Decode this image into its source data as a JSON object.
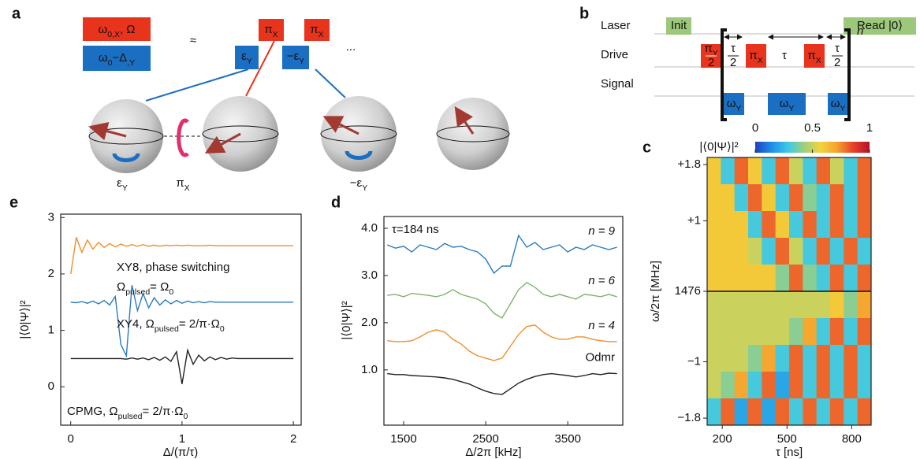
{
  "panel_a": {
    "label": "a",
    "boxes": [
      [
        {
          "t": "ω"
        },
        {
          "sub": "0,X"
        },
        {
          "t": ", Ω"
        }
      ],
      [
        {
          "t": "ω"
        },
        {
          "sub": "0"
        },
        {
          "t": "−Δ"
        },
        {
          "sub": ",Y"
        }
      ]
    ],
    "approx": "≈",
    "pulses": [
      [
        {
          "t": "π"
        },
        {
          "sub": "X"
        }
      ],
      [
        {
          "t": "π"
        },
        {
          "sub": "X"
        }
      ]
    ],
    "phases": [
      [
        {
          "t": "ε"
        },
        {
          "sub": "Y"
        }
      ],
      [
        {
          "t": "−ε"
        },
        {
          "sub": "Y"
        }
      ]
    ],
    "ellipsis": "...",
    "sphere_labels": [
      [
        {
          "t": "ε"
        },
        {
          "sub": "Y"
        }
      ],
      [
        {
          "t": "π"
        },
        {
          "sub": "X"
        }
      ],
      [
        {
          "t": "−ε"
        },
        {
          "sub": "Y"
        }
      ]
    ]
  },
  "panel_b": {
    "label": "b",
    "rows": [
      "Laser",
      "Drive",
      "Signal"
    ],
    "init": "Init",
    "read": "Read |0⟩",
    "drive": [
      {
        "num": [
          {
            "t": "π"
          },
          {
            "sub": "Y"
          }
        ],
        "den": "2"
      },
      {
        "num": "τ",
        "den": "2"
      },
      [
        {
          "t": "π"
        },
        {
          "sub": "X"
        }
      ],
      "τ",
      [
        {
          "t": "π"
        },
        {
          "sub": "X"
        }
      ],
      {
        "num": "τ",
        "den": "2"
      }
    ],
    "signal": [
      [
        {
          "t": "ω"
        },
        {
          "sub": "Y"
        }
      ],
      [
        {
          "t": "ω"
        },
        {
          "sub": "Y"
        }
      ],
      [
        {
          "t": "ω"
        },
        {
          "sub": "Y"
        }
      ]
    ],
    "repeat": "n"
  },
  "chart_data": [
    {
      "type": "heatmap",
      "label": "c",
      "colorbar_title": "|⟨0|Ψ⟩|²",
      "clim": [
        0,
        1
      ],
      "cbar_ticks": [
        0,
        0.5,
        1
      ],
      "colormap": [
        "#1f3fbf",
        "#1e8fe8",
        "#3cc8e6",
        "#9fd07e",
        "#f4d33c",
        "#f5a22e",
        "#e8402a",
        "#b0122a"
      ],
      "xlabel": "τ [ns]",
      "ylabel": "ω/2π [MHz]",
      "xlim": [
        130,
        890
      ],
      "ylim": [
        -1.9,
        1.9
      ],
      "xticks": [
        200,
        500,
        800
      ],
      "yticks": [
        {
          "value": 1.8,
          "label": "+1.8"
        },
        {
          "value": 1,
          "label": "+1"
        },
        {
          "value": 0,
          "label": "1476"
        },
        {
          "value": -1,
          "label": "−1"
        },
        {
          "value": -1.8,
          "label": "−1.8"
        }
      ],
      "z": [
        [
          0.6,
          0.3,
          0.8,
          0.6,
          0.3,
          0.8,
          0.5,
          0.3,
          0.8,
          0.5,
          0.3,
          0.8
        ],
        [
          0.6,
          0.6,
          0.3,
          0.8,
          0.6,
          0.3,
          0.8,
          0.4,
          0.3,
          0.8,
          0.3,
          0.8
        ],
        [
          0.6,
          0.6,
          0.6,
          0.3,
          0.8,
          0.6,
          0.3,
          0.8,
          0.3,
          0.8,
          0.3,
          0.8
        ],
        [
          0.6,
          0.6,
          0.6,
          0.5,
          0.3,
          0.8,
          0.5,
          0.3,
          0.8,
          0.3,
          0.8,
          0.3
        ],
        [
          0.6,
          0.6,
          0.6,
          0.6,
          0.6,
          0.4,
          0.8,
          0.4,
          0.3,
          0.8,
          0.3,
          0.8
        ],
        [
          0.5,
          0.5,
          0.5,
          0.5,
          0.5,
          0.5,
          0.5,
          0.5,
          0.5,
          0.6,
          0.4,
          0.7
        ],
        [
          0.5,
          0.5,
          0.5,
          0.5,
          0.5,
          0.5,
          0.4,
          0.7,
          0.3,
          0.8,
          0.3,
          0.8
        ],
        [
          0.5,
          0.5,
          0.5,
          0.4,
          0.7,
          0.3,
          0.8,
          0.3,
          0.8,
          0.3,
          0.8,
          0.3
        ],
        [
          0.5,
          0.4,
          0.7,
          0.3,
          0.8,
          0.2,
          0.8,
          0.3,
          0.8,
          0.3,
          0.8,
          0.3
        ],
        [
          0.3,
          0.8,
          0.2,
          0.8,
          0.2,
          0.8,
          0.3,
          0.8,
          0.3,
          0.8,
          0.3,
          0.8
        ]
      ]
    },
    {
      "type": "line",
      "label": "d",
      "xlabel": "Δ/2π [kHz]",
      "ylabel": "|⟨0|Ψ⟩|²",
      "annotation": "τ=184 ns",
      "xlim": [
        1260,
        4170
      ],
      "ylim": [
        -0.17,
        4.25
      ],
      "xticks": [
        1500,
        2500,
        3500
      ],
      "yticks": [
        {
          "value": 1,
          "label": "1.0"
        },
        {
          "value": 2,
          "label": "2.0"
        },
        {
          "value": 3,
          "label": "3.0"
        },
        {
          "value": 4,
          "label": "4.0"
        }
      ],
      "x": [
        1300,
        1400,
        1500,
        1600,
        1700,
        1800,
        1900,
        2000,
        2100,
        2200,
        2300,
        2400,
        2500,
        2600,
        2700,
        2800,
        2900,
        3000,
        3100,
        3200,
        3300,
        3400,
        3500,
        3600,
        3700,
        3800,
        3900,
        4000,
        4100
      ],
      "series": [
        {
          "name": "n = 9",
          "color": "#2a7bc0",
          "label_color": "#1b6fc2",
          "values": [
            3.65,
            3.58,
            3.62,
            3.5,
            3.65,
            3.6,
            3.55,
            3.68,
            3.6,
            3.62,
            3.55,
            3.5,
            3.35,
            3.05,
            3.2,
            3.2,
            3.85,
            3.6,
            3.7,
            3.55,
            3.6,
            3.65,
            3.5,
            3.6,
            3.55,
            3.65,
            3.6,
            3.55,
            3.6
          ]
        },
        {
          "name": "n = 6",
          "color": "#7cb46b",
          "label_color": "#1b6fc2",
          "values": [
            2.58,
            2.6,
            2.55,
            2.62,
            2.6,
            2.58,
            2.55,
            2.6,
            2.7,
            2.6,
            2.55,
            2.5,
            2.4,
            2.2,
            2.1,
            2.4,
            2.7,
            2.85,
            2.75,
            2.6,
            2.55,
            2.6,
            2.55,
            2.5,
            2.6,
            2.58,
            2.55,
            2.6,
            2.55
          ]
        },
        {
          "name": "n = 4",
          "color": "#f28e2b",
          "label_color": "#1b6fc2",
          "values": [
            1.62,
            1.6,
            1.6,
            1.62,
            1.7,
            1.8,
            1.85,
            1.8,
            1.65,
            1.55,
            1.4,
            1.3,
            1.25,
            1.2,
            1.25,
            1.5,
            1.75,
            1.92,
            1.95,
            1.8,
            1.7,
            1.65,
            1.65,
            1.7,
            1.7,
            1.65,
            1.62,
            1.6,
            1.6
          ]
        },
        {
          "name": "Odmr",
          "color": "#222222",
          "label_color": "#111111",
          "values": [
            0.92,
            0.9,
            0.9,
            0.88,
            0.87,
            0.86,
            0.85,
            0.83,
            0.8,
            0.75,
            0.7,
            0.62,
            0.55,
            0.5,
            0.48,
            0.6,
            0.72,
            0.8,
            0.86,
            0.9,
            0.92,
            0.9,
            0.88,
            0.85,
            0.88,
            0.92,
            0.9,
            0.93,
            0.92
          ]
        }
      ]
    },
    {
      "type": "line",
      "label": "e",
      "xlabel": "Δ/(π/τ)",
      "ylabel": "|⟨0|Ψ⟩|²",
      "xlim": [
        -0.09,
        2.07
      ],
      "ylim": [
        -0.68,
        3.06
      ],
      "xticks": [
        0,
        1,
        2
      ],
      "yticks": [
        0,
        1,
        2,
        3
      ],
      "annotations": [
        [
          {
            "t": "XY8, phase switching"
          }
        ],
        [
          {
            "t": "Ω"
          },
          {
            "sub": "pulsed"
          },
          {
            "t": "= Ω"
          },
          {
            "sub": "0"
          }
        ],
        [
          {
            "t": "XY4, Ω"
          },
          {
            "sub": "pulsed"
          },
          {
            "t": "= 2/π·Ω"
          },
          {
            "sub": "0"
          }
        ],
        [
          {
            "t": "CPMG, Ω"
          },
          {
            "sub": "pulsed"
          },
          {
            "t": "= 2/π·Ω"
          },
          {
            "sub": "0"
          }
        ]
      ],
      "x": [
        0,
        0.05,
        0.1,
        0.15,
        0.2,
        0.25,
        0.3,
        0.35,
        0.4,
        0.45,
        0.5,
        0.55,
        0.6,
        0.65,
        0.7,
        0.75,
        0.8,
        0.85,
        0.9,
        0.95,
        1,
        1.05,
        1.1,
        1.15,
        1.2,
        1.25,
        1.3,
        1.35,
        1.4,
        1.45,
        1.5,
        1.55,
        1.6,
        1.65,
        1.7,
        1.75,
        1.8,
        1.85,
        1.9,
        1.95,
        2
      ],
      "series": [
        {
          "color": "#f28e2b",
          "values": [
            2.0,
            2.65,
            2.38,
            2.6,
            2.44,
            2.56,
            2.47,
            2.54,
            2.48,
            2.53,
            2.49,
            2.52,
            2.49,
            2.52,
            2.49,
            2.51,
            2.49,
            2.51,
            2.5,
            2.51,
            2.5,
            2.51,
            2.5,
            2.5,
            2.5,
            2.51,
            2.5,
            2.5,
            2.5,
            2.5,
            2.5,
            2.5,
            2.5,
            2.5,
            2.5,
            2.5,
            2.5,
            2.5,
            2.5,
            2.5,
            2.5
          ]
        },
        {
          "color": "#2a7bc0",
          "values": [
            1.5,
            1.49,
            1.51,
            1.48,
            1.52,
            1.47,
            1.53,
            1.45,
            1.6,
            0.75,
            0.55,
            1.8,
            1.35,
            1.65,
            1.4,
            1.58,
            1.45,
            1.54,
            1.47,
            1.53,
            1.48,
            1.52,
            1.49,
            1.51,
            1.49,
            1.51,
            1.5,
            1.5,
            1.5,
            1.5,
            1.5,
            1.5,
            1.5,
            1.5,
            1.5,
            1.5,
            1.5,
            1.5,
            1.5,
            1.5,
            1.5
          ]
        },
        {
          "color": "#222222",
          "values": [
            0.5,
            0.5,
            0.5,
            0.5,
            0.5,
            0.5,
            0.5,
            0.5,
            0.5,
            0.5,
            0.49,
            0.51,
            0.49,
            0.51,
            0.48,
            0.52,
            0.47,
            0.53,
            0.45,
            0.62,
            0.05,
            0.65,
            0.4,
            0.56,
            0.46,
            0.53,
            0.48,
            0.52,
            0.49,
            0.51,
            0.5,
            0.5,
            0.5,
            0.5,
            0.5,
            0.5,
            0.5,
            0.5,
            0.5,
            0.5,
            0.5
          ]
        }
      ]
    }
  ]
}
